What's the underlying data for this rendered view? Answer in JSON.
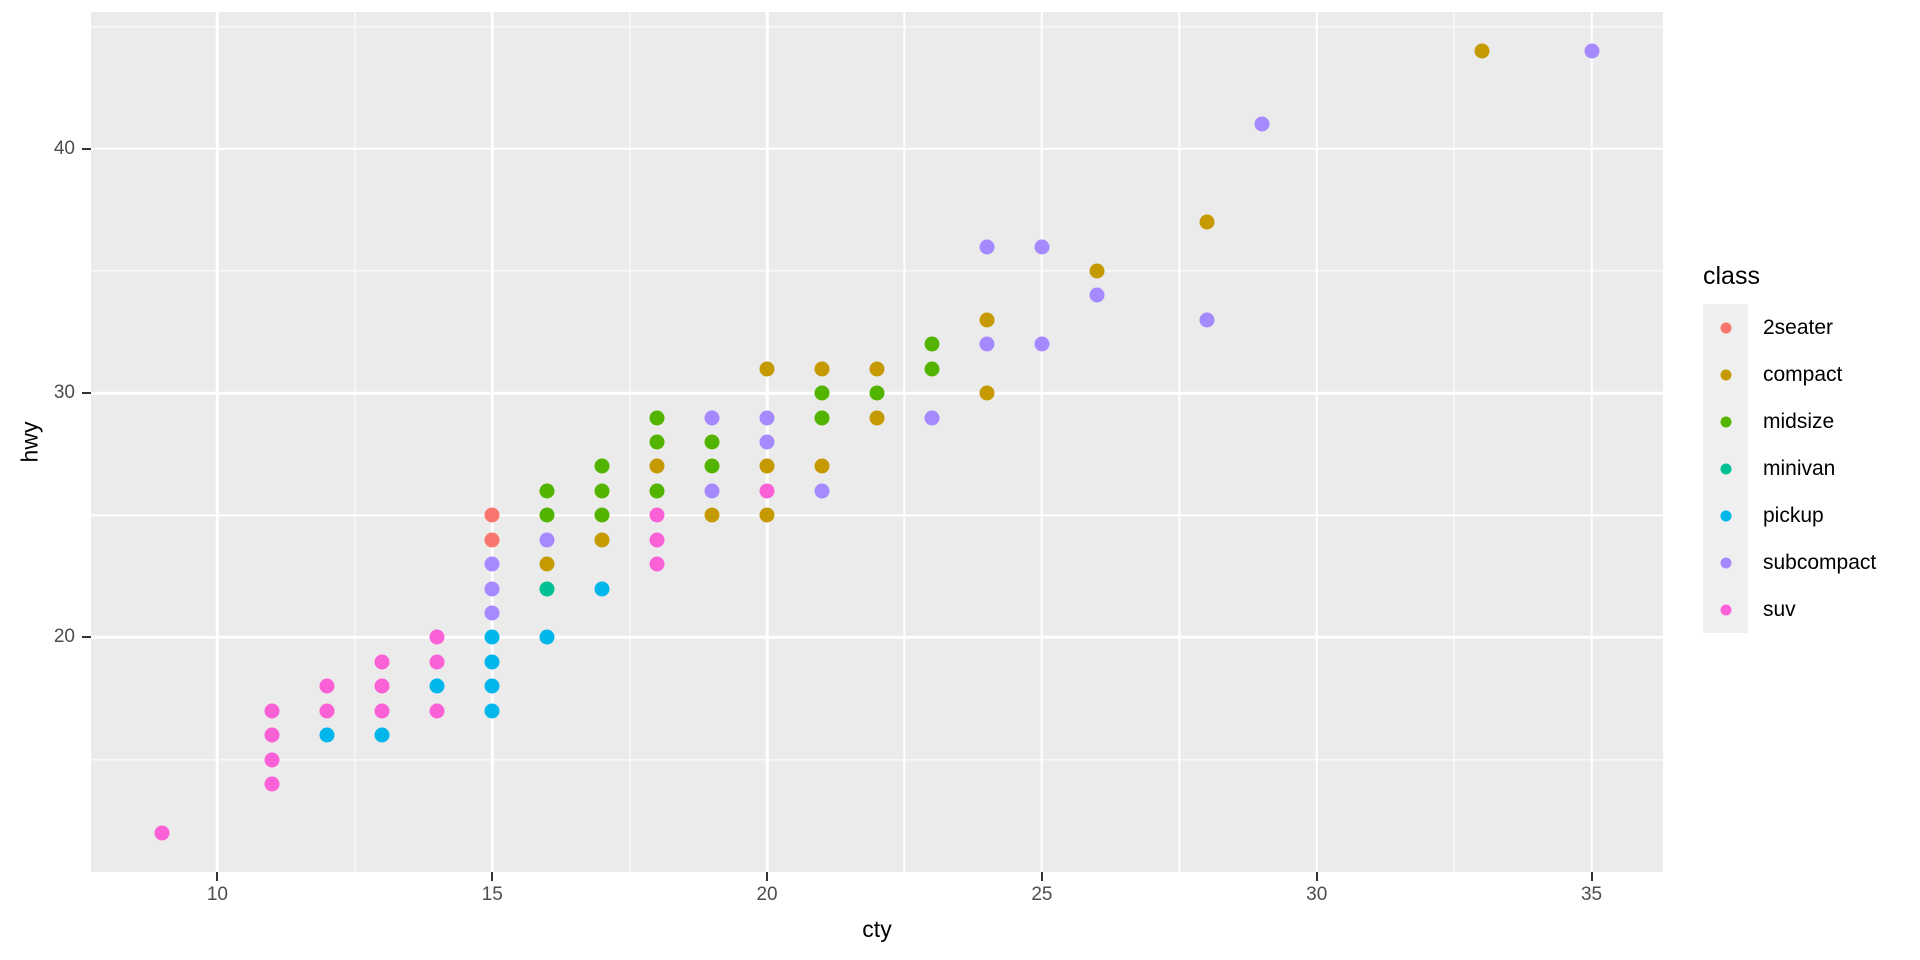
{
  "chart_data": {
    "type": "scatter",
    "title": "",
    "xlabel": "cty",
    "ylabel": "hwy",
    "xlim": [
      7.7,
      36.3
    ],
    "ylim": [
      10.4,
      45.6
    ],
    "x_major_ticks": [
      10,
      15,
      20,
      25,
      30,
      35
    ],
    "x_minor_gridlines": [
      12.5,
      17.5,
      22.5,
      27.5,
      32.5
    ],
    "y_major_ticks": [
      20,
      30,
      40
    ],
    "y_minor_gridlines": [
      15,
      25,
      35,
      45
    ],
    "grid": "on",
    "panel_background": "#EBEBEB",
    "gridline_color": "#FFFFFF",
    "tick_label_color": "#4D4D4D",
    "tick_mark_color": "#333333",
    "legend": {
      "title": "class",
      "position": "right",
      "key_background": "#EFEFEF",
      "entries": [
        "2seater",
        "compact",
        "midsize",
        "minivan",
        "pickup",
        "subcompact",
        "suv"
      ]
    },
    "palette": {
      "2seater": "#F8766D",
      "compact": "#C49A00",
      "midsize": "#53B400",
      "minivan": "#00C094",
      "pickup": "#00B6EB",
      "subcompact": "#A58AFF",
      "suv": "#FB61D7"
    },
    "points": [
      [
        9,
        12,
        "suv"
      ],
      [
        11,
        17,
        "suv"
      ],
      [
        11,
        16,
        "suv"
      ],
      [
        11,
        15,
        "suv"
      ],
      [
        11,
        14,
        "suv"
      ],
      [
        12,
        18,
        "suv"
      ],
      [
        12,
        17,
        "suv"
      ],
      [
        12,
        16,
        "pickup"
      ],
      [
        13,
        19,
        "suv"
      ],
      [
        13,
        18,
        "suv"
      ],
      [
        13,
        17,
        "suv"
      ],
      [
        13,
        16,
        "pickup"
      ],
      [
        14,
        20,
        "suv"
      ],
      [
        14,
        19,
        "suv"
      ],
      [
        14,
        18,
        "pickup"
      ],
      [
        14,
        17,
        "suv"
      ],
      [
        15,
        25,
        "2seater"
      ],
      [
        15,
        24,
        "2seater"
      ],
      [
        15,
        23,
        "subcompact"
      ],
      [
        15,
        22,
        "subcompact"
      ],
      [
        15,
        21,
        "subcompact"
      ],
      [
        15,
        20,
        "pickup"
      ],
      [
        15,
        19,
        "pickup"
      ],
      [
        15,
        18,
        "pickup"
      ],
      [
        15,
        17,
        "pickup"
      ],
      [
        16,
        26,
        "midsize"
      ],
      [
        16,
        25,
        "midsize"
      ],
      [
        16,
        24,
        "subcompact"
      ],
      [
        16,
        23,
        "compact"
      ],
      [
        16,
        22,
        "minivan"
      ],
      [
        16,
        20,
        "pickup"
      ],
      [
        17,
        27,
        "midsize"
      ],
      [
        17,
        26,
        "midsize"
      ],
      [
        17,
        25,
        "midsize"
      ],
      [
        17,
        24,
        "compact"
      ],
      [
        17,
        22,
        "pickup"
      ],
      [
        18,
        29,
        "midsize"
      ],
      [
        18,
        28,
        "midsize"
      ],
      [
        18,
        27,
        "compact"
      ],
      [
        18,
        26,
        "midsize"
      ],
      [
        18,
        25,
        "suv"
      ],
      [
        18,
        24,
        "suv"
      ],
      [
        18,
        23,
        "suv"
      ],
      [
        19,
        29,
        "subcompact"
      ],
      [
        19,
        28,
        "midsize"
      ],
      [
        19,
        27,
        "midsize"
      ],
      [
        19,
        26,
        "subcompact"
      ],
      [
        19,
        25,
        "compact"
      ],
      [
        20,
        31,
        "compact"
      ],
      [
        20,
        29,
        "subcompact"
      ],
      [
        20,
        28,
        "subcompact"
      ],
      [
        20,
        27,
        "compact"
      ],
      [
        20,
        26,
        "suv"
      ],
      [
        20,
        25,
        "compact"
      ],
      [
        21,
        31,
        "compact"
      ],
      [
        21,
        30,
        "midsize"
      ],
      [
        21,
        29,
        "midsize"
      ],
      [
        21,
        27,
        "compact"
      ],
      [
        21,
        26,
        "subcompact"
      ],
      [
        22,
        31,
        "compact"
      ],
      [
        22,
        30,
        "midsize"
      ],
      [
        22,
        29,
        "compact"
      ],
      [
        23,
        32,
        "midsize"
      ],
      [
        23,
        31,
        "midsize"
      ],
      [
        23,
        29,
        "subcompact"
      ],
      [
        24,
        36,
        "subcompact"
      ],
      [
        24,
        33,
        "compact"
      ],
      [
        24,
        32,
        "subcompact"
      ],
      [
        24,
        30,
        "compact"
      ],
      [
        25,
        36,
        "subcompact"
      ],
      [
        25,
        32,
        "subcompact"
      ],
      [
        26,
        35,
        "compact"
      ],
      [
        26,
        34,
        "subcompact"
      ],
      [
        28,
        37,
        "compact"
      ],
      [
        28,
        33,
        "subcompact"
      ],
      [
        29,
        41,
        "subcompact"
      ],
      [
        33,
        44,
        "compact"
      ],
      [
        35,
        44,
        "subcompact"
      ]
    ]
  }
}
